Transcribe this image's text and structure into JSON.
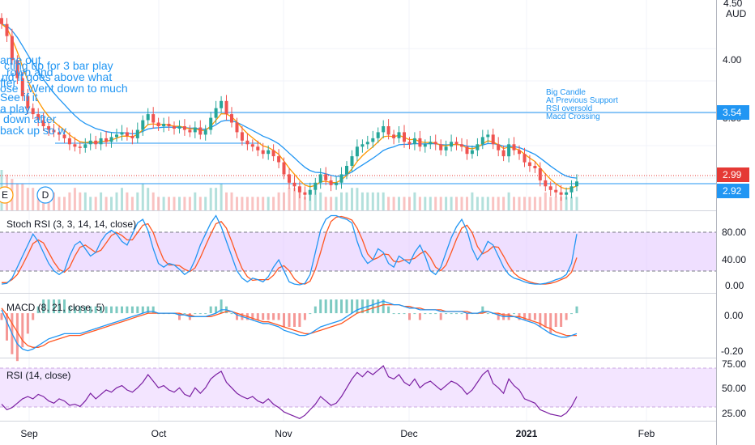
{
  "currency": "AUD",
  "axis_top_label": "4.50",
  "price_labels": {
    "level_354": "3.54",
    "last": "2.99",
    "level_292": "2.92"
  },
  "event_markers": [
    "E",
    "D"
  ],
  "note_right": [
    "Big Candle",
    "At Previous Support",
    "RSI oversold",
    "Macd Crossing"
  ],
  "note_left": [
    "ame out",
    "cting up for 3 bar play",
    "rown and",
    "nd it goes above what",
    "fter",
    "ose . Went down to much",
    "See if it",
    "a play",
    "down after",
    "back up so w"
  ],
  "colors": {
    "up": "#26a69a",
    "down": "#ef5350",
    "ma_fast": "#ff9800",
    "ma_slow": "#2196f3",
    "stoch_k": "#2196f3",
    "stoch_d": "#ff5722",
    "stoch_band": "#e1c4ff",
    "rsi_line": "#7b1fa2",
    "rsi_band": "#f3e5ff",
    "hline": "#2196f3",
    "last_price": "#e53935"
  },
  "chart_data": [
    {
      "type": "candlestick",
      "name": "price",
      "currency": "AUD",
      "x_labels": [
        "Sep",
        "Oct",
        "Nov",
        "Dec",
        "2021",
        "Feb"
      ],
      "y_ticks": [
        "4.00",
        "3.50"
      ],
      "ylim": [
        2.75,
        4.5
      ],
      "horizontal_levels": [
        3.54,
        3.2,
        2.92
      ],
      "last_price": 2.99,
      "closes": [
        4.3,
        4.2,
        4.0,
        3.85,
        3.7,
        3.6,
        3.55,
        3.5,
        3.45,
        3.42,
        3.4,
        3.38,
        3.35,
        3.3,
        3.28,
        3.27,
        3.3,
        3.33,
        3.3,
        3.35,
        3.32,
        3.36,
        3.38,
        3.4,
        3.37,
        3.35,
        3.42,
        3.5,
        3.55,
        3.48,
        3.45,
        3.47,
        3.45,
        3.43,
        3.45,
        3.42,
        3.4,
        3.44,
        3.38,
        3.42,
        3.52,
        3.6,
        3.66,
        3.55,
        3.48,
        3.4,
        3.33,
        3.3,
        3.28,
        3.25,
        3.22,
        3.25,
        3.2,
        3.15,
        3.05,
        2.98,
        2.95,
        2.9,
        2.88,
        2.92,
        2.98,
        3.05,
        3.0,
        2.96,
        2.98,
        3.05,
        3.12,
        3.2,
        3.28,
        3.3,
        3.32,
        3.35,
        3.4,
        3.45,
        3.38,
        3.35,
        3.4,
        3.32,
        3.3,
        3.35,
        3.28,
        3.3,
        3.32,
        3.3,
        3.25,
        3.28,
        3.32,
        3.3,
        3.28,
        3.22,
        3.25,
        3.3,
        3.36,
        3.38,
        3.3,
        3.25,
        3.2,
        3.3,
        3.25,
        3.22,
        3.15,
        3.12,
        3.1,
        3.0,
        2.95,
        2.92,
        2.9,
        2.88,
        2.9,
        2.95,
        2.99
      ]
    },
    {
      "type": "bar",
      "name": "volume",
      "values": [
        9,
        8,
        7,
        6,
        6,
        5,
        5,
        4,
        4,
        4,
        4,
        3,
        3,
        4,
        5,
        4,
        4,
        3,
        3,
        4,
        3,
        3,
        4,
        5,
        4,
        3,
        4,
        6,
        5,
        4,
        3,
        3,
        3,
        3,
        3,
        3,
        3,
        4,
        3,
        3,
        5,
        5,
        6,
        4,
        4,
        3,
        3,
        3,
        3,
        3,
        3,
        3,
        3,
        4,
        4,
        5,
        5,
        4,
        3,
        4,
        5,
        4,
        3,
        3,
        3,
        4,
        4,
        5,
        5,
        4,
        4,
        4,
        4,
        4,
        3,
        3,
        3,
        3,
        3,
        4,
        3,
        3,
        3,
        3,
        3,
        3,
        3,
        3,
        3,
        3,
        4,
        3,
        3,
        3,
        3,
        3,
        3,
        4,
        3,
        3,
        3,
        3,
        3,
        3,
        4,
        3,
        3,
        3,
        3,
        3,
        3
      ]
    },
    {
      "type": "line",
      "name": "Stoch RSI (3, 3, 14, 14, close)",
      "y_ticks": [
        "80.00",
        "40.00",
        "0.00"
      ],
      "ylim": [
        -10,
        100
      ],
      "bands": [
        20,
        80
      ],
      "series": [
        {
          "name": "K",
          "values": [
            2,
            3,
            10,
            25,
            40,
            55,
            70,
            60,
            45,
            30,
            20,
            15,
            20,
            40,
            55,
            60,
            50,
            40,
            45,
            60,
            70,
            75,
            70,
            60,
            55,
            70,
            85,
            90,
            75,
            50,
            30,
            25,
            30,
            28,
            22,
            15,
            20,
            35,
            55,
            70,
            85,
            95,
            80,
            60,
            40,
            20,
            10,
            5,
            10,
            8,
            5,
            12,
            25,
            35,
            20,
            5,
            2,
            1,
            3,
            15,
            45,
            75,
            90,
            95,
            95,
            92,
            90,
            85,
            60,
            40,
            30,
            35,
            50,
            45,
            30,
            25,
            40,
            35,
            30,
            45,
            55,
            40,
            20,
            15,
            25,
            45,
            65,
            80,
            90,
            75,
            50,
            35,
            45,
            60,
            55,
            40,
            25,
            15,
            10,
            8,
            5,
            3,
            2,
            2,
            3,
            5,
            8,
            10,
            15,
            30,
            70
          ]
        },
        {
          "name": "D",
          "values": [
            4,
            4,
            8,
            15,
            28,
            42,
            57,
            62,
            58,
            45,
            32,
            22,
            18,
            25,
            40,
            52,
            55,
            50,
            45,
            48,
            58,
            68,
            72,
            68,
            62,
            62,
            72,
            82,
            84,
            72,
            52,
            35,
            28,
            28,
            27,
            22,
            19,
            24,
            38,
            54,
            70,
            84,
            87,
            78,
            60,
            40,
            23,
            12,
            7,
            8,
            8,
            8,
            14,
            24,
            27,
            20,
            9,
            3,
            2,
            6,
            22,
            45,
            70,
            87,
            93,
            94,
            92,
            89,
            78,
            62,
            43,
            35,
            38,
            43,
            42,
            33,
            32,
            35,
            35,
            37,
            43,
            47,
            38,
            25,
            20,
            28,
            45,
            63,
            78,
            82,
            72,
            53,
            43,
            47,
            53,
            52,
            40,
            27,
            17,
            11,
            8,
            5,
            3,
            2,
            2,
            3,
            5,
            8,
            11,
            18,
            38
          ]
        }
      ]
    },
    {
      "type": "line",
      "name": "MACD (8, 21, close, 5)",
      "y_ticks": [
        "0.00",
        "-0.20"
      ],
      "ylim": [
        -0.26,
        0.1
      ],
      "series": [
        {
          "name": "MACD",
          "values": [
            0.02,
            -0.05,
            -0.12,
            -0.18,
            -0.21,
            -0.22,
            -0.21,
            -0.19,
            -0.17,
            -0.15,
            -0.14,
            -0.13,
            -0.12,
            -0.12,
            -0.12,
            -0.12,
            -0.11,
            -0.1,
            -0.09,
            -0.08,
            -0.07,
            -0.06,
            -0.05,
            -0.04,
            -0.03,
            -0.02,
            -0.01,
            0.0,
            0.01,
            0.01,
            0.0,
            0.0,
            0.0,
            0.0,
            -0.01,
            -0.01,
            -0.02,
            -0.02,
            -0.02,
            -0.02,
            -0.01,
            0.0,
            0.02,
            0.02,
            0.01,
            -0.01,
            -0.02,
            -0.03,
            -0.04,
            -0.05,
            -0.06,
            -0.06,
            -0.07,
            -0.08,
            -0.1,
            -0.11,
            -0.12,
            -0.13,
            -0.13,
            -0.12,
            -0.1,
            -0.08,
            -0.07,
            -0.06,
            -0.05,
            -0.04,
            -0.02,
            0.0,
            0.02,
            0.03,
            0.04,
            0.05,
            0.06,
            0.07,
            0.06,
            0.05,
            0.05,
            0.04,
            0.03,
            0.03,
            0.02,
            0.02,
            0.02,
            0.02,
            0.01,
            0.01,
            0.01,
            0.01,
            0.01,
            0.0,
            0.0,
            0.0,
            0.01,
            0.01,
            0.0,
            -0.01,
            -0.02,
            -0.02,
            -0.02,
            -0.03,
            -0.04,
            -0.05,
            -0.06,
            -0.08,
            -0.1,
            -0.12,
            -0.13,
            -0.14,
            -0.14,
            -0.13,
            -0.12
          ]
        },
        {
          "name": "Signal",
          "values": [
            0.03,
            -0.01,
            -0.06,
            -0.11,
            -0.16,
            -0.19,
            -0.2,
            -0.2,
            -0.19,
            -0.17,
            -0.16,
            -0.15,
            -0.14,
            -0.13,
            -0.13,
            -0.13,
            -0.12,
            -0.11,
            -0.1,
            -0.09,
            -0.08,
            -0.07,
            -0.06,
            -0.05,
            -0.04,
            -0.03,
            -0.02,
            -0.01,
            0.0,
            0.0,
            0.0,
            0.0,
            0.0,
            0.0,
            0.0,
            -0.01,
            -0.01,
            -0.02,
            -0.02,
            -0.02,
            -0.02,
            -0.01,
            0.0,
            0.01,
            0.01,
            0.0,
            -0.01,
            -0.02,
            -0.03,
            -0.04,
            -0.05,
            -0.05,
            -0.06,
            -0.07,
            -0.08,
            -0.09,
            -0.1,
            -0.11,
            -0.12,
            -0.12,
            -0.11,
            -0.1,
            -0.09,
            -0.08,
            -0.07,
            -0.06,
            -0.04,
            -0.02,
            0.0,
            0.01,
            0.02,
            0.03,
            0.04,
            0.05,
            0.05,
            0.05,
            0.05,
            0.04,
            0.04,
            0.03,
            0.03,
            0.02,
            0.02,
            0.02,
            0.02,
            0.01,
            0.01,
            0.01,
            0.01,
            0.01,
            0.0,
            0.0,
            0.0,
            0.01,
            0.0,
            0.0,
            -0.01,
            -0.01,
            -0.02,
            -0.02,
            -0.03,
            -0.04,
            -0.05,
            -0.06,
            -0.08,
            -0.09,
            -0.11,
            -0.12,
            -0.13,
            -0.13,
            -0.13
          ]
        }
      ]
    },
    {
      "type": "line",
      "name": "RSI (14, close)",
      "y_ticks": [
        "75.00",
        "50.00",
        "25.00"
      ],
      "ylim": [
        20,
        76
      ],
      "bands": [
        30,
        70
      ],
      "series": [
        {
          "name": "RSI",
          "values": [
            35,
            30,
            32,
            36,
            40,
            42,
            40,
            44,
            42,
            38,
            36,
            40,
            38,
            34,
            35,
            33,
            38,
            45,
            40,
            44,
            48,
            46,
            50,
            52,
            48,
            46,
            50,
            55,
            62,
            56,
            50,
            52,
            48,
            46,
            50,
            44,
            42,
            50,
            45,
            50,
            58,
            62,
            65,
            55,
            50,
            45,
            42,
            40,
            42,
            38,
            36,
            40,
            35,
            32,
            28,
            26,
            24,
            22,
            25,
            30,
            35,
            42,
            38,
            34,
            36,
            42,
            50,
            58,
            64,
            60,
            65,
            62,
            66,
            70,
            60,
            58,
            62,
            55,
            52,
            58,
            50,
            54,
            56,
            52,
            48,
            52,
            56,
            54,
            50,
            44,
            48,
            55,
            62,
            66,
            54,
            50,
            45,
            58,
            52,
            48,
            40,
            38,
            36,
            30,
            28,
            26,
            25,
            24,
            27,
            33,
            42
          ]
        }
      ]
    }
  ]
}
